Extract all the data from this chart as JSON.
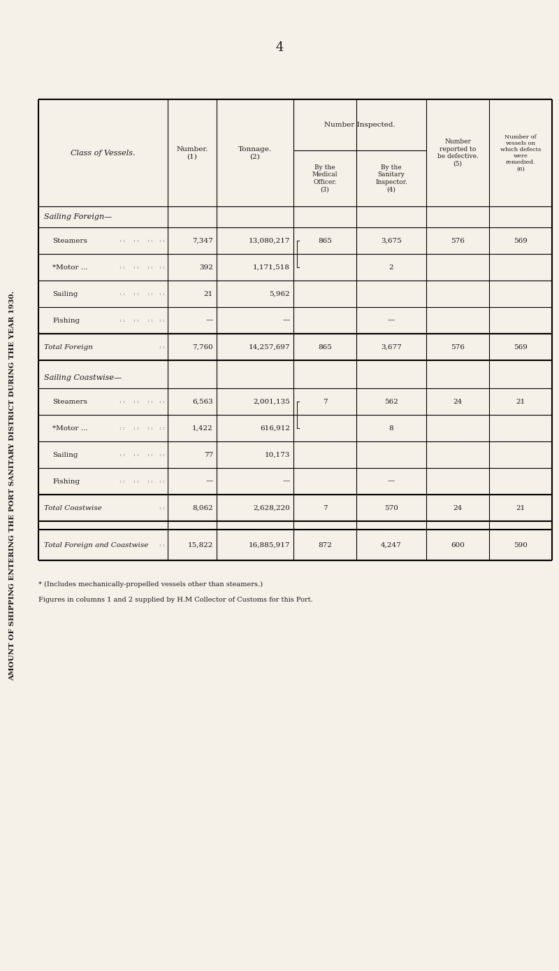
{
  "page_number": "4",
  "title": "AMOUNT OF SHIPPING ENTERING THE PORT SANITARY DISTRICT DURING THE YEAR 1930.",
  "background_color": "#f5f0e8",
  "text_color": "#1a1a1a",
  "columns": [
    "Class of Vessels.",
    "Number.\n(1)",
    "Tonnage.\n(2)",
    "Number Inspected.\nBy the Medical\nOfficer.\n(3)",
    "Number Inspected.\nBy the Sanitary\nInspector.\n(4)",
    "Number\nreported to\nbe defective.\n(5)",
    "Number of\nvessels on\nwhich defects\nwere\nremedied.\n(6)"
  ],
  "sections": [
    {
      "header": "Sailing Foreign—",
      "rows": [
        {
          "label": "Steamers",
          "indent": 12,
          "num": "7,347",
          "ton": "13,080,217",
          "med": "865",
          "san": "3,675",
          "def": "576",
          "rem": "569",
          "bracket_med": true
        },
        {
          "label": "*Motor ...",
          "indent": 12,
          "num": "392",
          "ton": "1,171,518",
          "med": "",
          "san": "2",
          "def": "",
          "rem": "",
          "bracket_med": true
        },
        {
          "label": "Sailing",
          "indent": 12,
          "num": "21",
          "ton": "5,962",
          "med": "",
          "san": "",
          "def": "",
          "rem": ""
        },
        {
          "label": "Fishing",
          "indent": 12,
          "num": "—",
          "ton": "—",
          "med": "",
          "san": "—",
          "def": "",
          "rem": ""
        }
      ],
      "total_label": "Total Foreign",
      "total_num": "7,760",
      "total_ton": "14,257,697",
      "total_med": "865",
      "total_san": "3,677",
      "total_def": "576",
      "total_rem": "569"
    },
    {
      "header": "Sailing Coastwise—",
      "rows": [
        {
          "label": "Steamers",
          "indent": 12,
          "num": "6,563",
          "ton": "2,001,135",
          "med": "7",
          "san": "562",
          "def": "24",
          "rem": "21",
          "bracket_med": true
        },
        {
          "label": "*Motor ...",
          "indent": 12,
          "num": "1,422",
          "ton": "616,912",
          "med": "",
          "san": "8",
          "def": "",
          "rem": "",
          "bracket_med": true
        },
        {
          "label": "Sailing",
          "indent": 12,
          "num": "77",
          "ton": "10,173",
          "med": "",
          "san": "",
          "def": "",
          "rem": ""
        },
        {
          "label": "Fishing",
          "indent": 12,
          "num": "—",
          "ton": "—",
          "med": "",
          "san": "—",
          "def": "",
          "rem": ""
        }
      ],
      "total_label": "Total Coastwise",
      "total_num": "8,062",
      "total_ton": "2,628,220",
      "total_med": "7",
      "total_san": "570",
      "total_def": "24",
      "total_rem": "21"
    }
  ],
  "grand_total_label": "Total Foreign and Coastwise",
  "grand_total_num": "15,822",
  "grand_total_ton": "16,885,917",
  "grand_total_med": "872",
  "grand_total_san": "4,247",
  "grand_total_def": "600",
  "grand_total_rem": "590",
  "footnote1": "* (Includes mechanically-propelled vessels other than steamers.)",
  "footnote2": "Figures in columns 1 and 2 supplied by H.M Collector of Customs for this Port."
}
